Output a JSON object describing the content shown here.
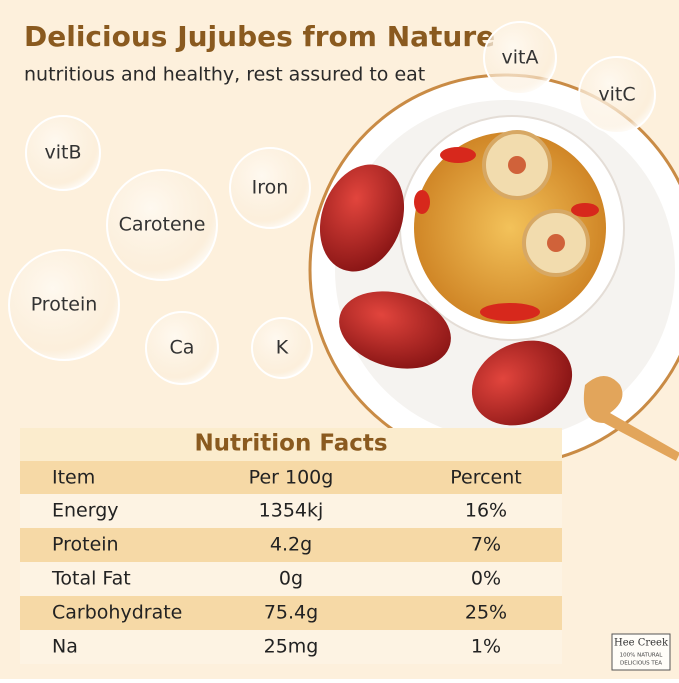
{
  "header": {
    "title": "Delicious Jujubes from Nature",
    "subtitle": "nutritious and healthy, rest assured to eat"
  },
  "nutrients": [
    "vitA",
    "vitC",
    "vitB",
    "Iron",
    "Carotene",
    "Protein",
    "Ca",
    "K"
  ],
  "table": {
    "title": "Nutrition Facts",
    "columns": [
      "Item",
      "Per 100g",
      "Percent"
    ],
    "rows": [
      [
        "Energy",
        "1354kj",
        "16%"
      ],
      [
        "Protein",
        "4.2g",
        "7%"
      ],
      [
        "Total Fat",
        "0g",
        "0%"
      ],
      [
        "Carbohydrate",
        "75.4g",
        "25%"
      ],
      [
        "Na",
        "25mg",
        "1%"
      ]
    ]
  },
  "brand": {
    "name": "Hee Creek",
    "line1": "100% NATURAL",
    "line2": "DELICIOUS TEA"
  }
}
